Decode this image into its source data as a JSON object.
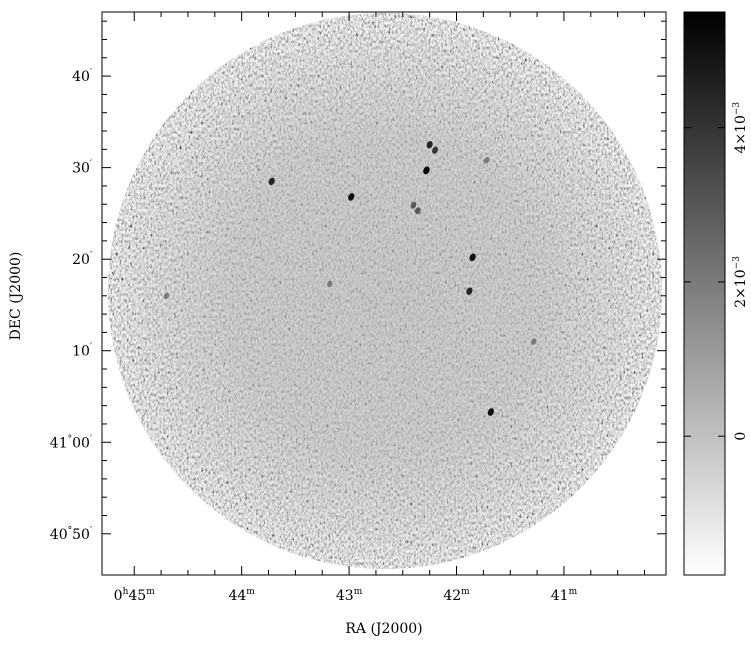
{
  "chart_data": {
    "type": "heatmap",
    "title": "",
    "xlabel": "RA (J2000)",
    "ylabel": "DEC (J2000)",
    "x_ticks": [
      {
        "main": "0",
        "unit1": "h",
        "main2": "45",
        "unit2": "m",
        "ra_min": 45
      },
      {
        "main": "44",
        "unit1": "m",
        "ra_min": 44
      },
      {
        "main": "43",
        "unit1": "m",
        "ra_min": 43
      },
      {
        "main": "42",
        "unit1": "m",
        "ra_min": 42
      },
      {
        "main": "41",
        "unit1": "m",
        "ra_min": 41
      }
    ],
    "y_ticks": [
      {
        "main": "40",
        "unit1": "′",
        "dec_arcmin": 40
      },
      {
        "main": "30",
        "unit1": "′",
        "dec_arcmin": 30
      },
      {
        "main": "20",
        "unit1": "′",
        "dec_arcmin": 20
      },
      {
        "main": "10",
        "unit1": "′",
        "dec_arcmin": 10
      },
      {
        "main": "41",
        "unit1": "°",
        "main2": "00",
        "unit2": "′",
        "dec_arcmin": 0
      },
      {
        "main": "40",
        "unit1": "°",
        "main2": "50",
        "unit2": "′",
        "dec_arcmin": -10
      }
    ],
    "x_range_ra_min": [
      45.3,
      40.05
    ],
    "y_range_dec_arcmin": [
      -14.5,
      47.0
    ],
    "colorbar": {
      "ticks": [
        {
          "label": "0",
          "value": 0
        },
        {
          "label_mant": "2×10",
          "label_exp": "−3",
          "value": 0.002
        },
        {
          "label_mant": "4×10",
          "label_exp": "−3",
          "value": 0.004
        }
      ],
      "range": [
        -0.0018,
        0.0055
      ],
      "colormap": "white-to-black"
    },
    "sources": [
      {
        "ra_min": 42.25,
        "dec_arcmin": 32.5,
        "intensity": 0.0045
      },
      {
        "ra_min": 42.2,
        "dec_arcmin": 31.9,
        "intensity": 0.004
      },
      {
        "ra_min": 42.28,
        "dec_arcmin": 29.7,
        "intensity": 0.0055
      },
      {
        "ra_min": 42.98,
        "dec_arcmin": 26.8,
        "intensity": 0.005
      },
      {
        "ra_min": 42.4,
        "dec_arcmin": 25.9,
        "intensity": 0.003
      },
      {
        "ra_min": 42.36,
        "dec_arcmin": 25.3,
        "intensity": 0.003
      },
      {
        "ra_min": 43.72,
        "dec_arcmin": 28.5,
        "intensity": 0.0045
      },
      {
        "ra_min": 41.72,
        "dec_arcmin": 30.8,
        "intensity": 0.002
      },
      {
        "ra_min": 41.85,
        "dec_arcmin": 20.2,
        "intensity": 0.005
      },
      {
        "ra_min": 41.88,
        "dec_arcmin": 16.5,
        "intensity": 0.0045
      },
      {
        "ra_min": 43.18,
        "dec_arcmin": 17.3,
        "intensity": 0.002
      },
      {
        "ra_min": 41.68,
        "dec_arcmin": 3.3,
        "intensity": 0.005
      },
      {
        "ra_min": 44.7,
        "dec_arcmin": 16.0,
        "intensity": 0.002
      },
      {
        "ra_min": 41.28,
        "dec_arcmin": 11.0,
        "intensity": 0.002
      }
    ],
    "colors": {
      "background": "#ffffff",
      "field_mid": "#b4b4b4",
      "axes": "#000000"
    }
  }
}
